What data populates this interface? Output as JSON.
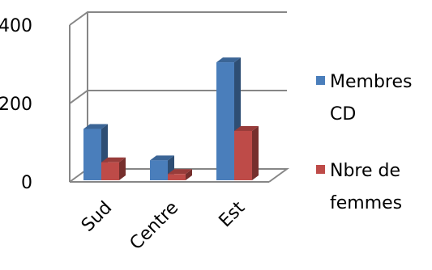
{
  "chart_data": {
    "type": "bar",
    "categories": [
      "Sud",
      "Centre",
      "Est"
    ],
    "series": [
      {
        "name": "Membres CD",
        "values": [
          135,
          55,
          305
        ],
        "color": "#4A7EBB"
      },
      {
        "name": "Nbre de femmes",
        "values": [
          50,
          20,
          130
        ],
        "color": "#BE4B48"
      }
    ],
    "ylim": [
      0,
      400
    ],
    "yticks": [
      "0",
      "200",
      "400"
    ],
    "grid": true,
    "legend_position": "right",
    "legend": [
      {
        "lines": [
          "Membres",
          "CD"
        ]
      },
      {
        "lines": [
          "Nbre de",
          "femmes"
        ]
      }
    ]
  }
}
